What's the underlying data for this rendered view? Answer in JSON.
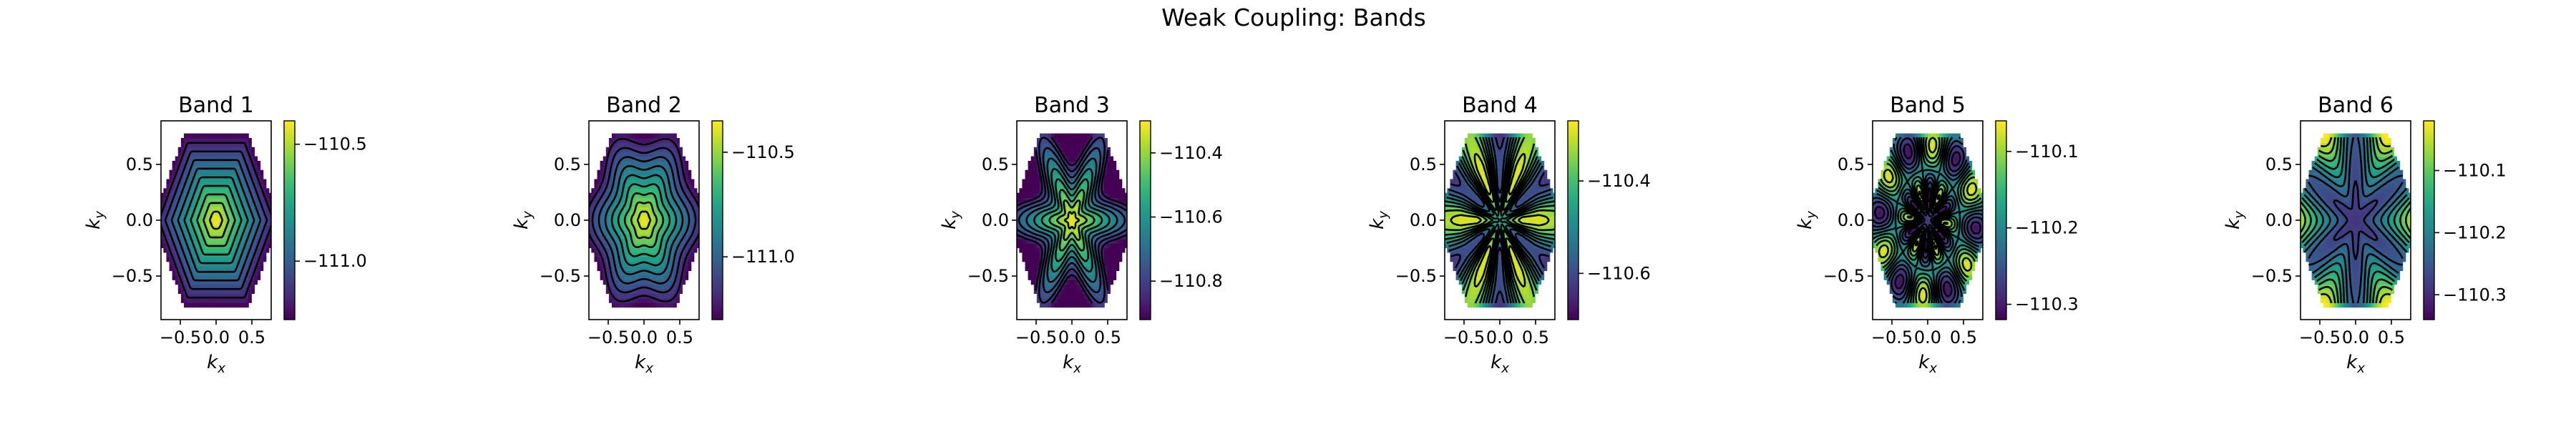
{
  "figure": {
    "title": "Weak Coupling: Bands"
  },
  "chart_data": [
    {
      "type": "heatmap",
      "title": "Band 1",
      "xlabel": "k_x",
      "ylabel": "k_y",
      "xlim": [
        -0.77,
        0.77
      ],
      "ylim": [
        -0.89,
        0.89
      ],
      "xticks": [
        -0.5,
        0.0,
        0.5
      ],
      "yticks": [
        -0.5,
        0.0,
        0.5
      ],
      "xtick_labels": [
        "−0.5",
        "0.0",
        "0.5"
      ],
      "ytick_labels": [
        "−0.5",
        "0.0",
        "0.5"
      ],
      "colorbar": {
        "range": [
          -111.25,
          -110.4
        ],
        "ticks": [
          -110.5,
          -111.0
        ],
        "tick_labels": [
          "−110.5",
          "−111.0"
        ]
      },
      "pattern": "hex-rings",
      "center_high": true
    },
    {
      "type": "heatmap",
      "title": "Band 2",
      "xlabel": "k_x",
      "ylabel": "k_y",
      "xlim": [
        -0.77,
        0.77
      ],
      "ylim": [
        -0.89,
        0.89
      ],
      "xticks": [
        -0.5,
        0.0,
        0.5
      ],
      "yticks": [
        -0.5,
        0.0,
        0.5
      ],
      "xtick_labels": [
        "−0.5",
        "0.0",
        "0.5"
      ],
      "ytick_labels": [
        "−0.5",
        "0.0",
        "0.5"
      ],
      "colorbar": {
        "range": [
          -111.3,
          -110.35
        ],
        "ticks": [
          -110.5,
          -111.0
        ],
        "tick_labels": [
          "−110.5",
          "−111.0"
        ]
      },
      "pattern": "soft-star",
      "center_high": true
    },
    {
      "type": "heatmap",
      "title": "Band 3",
      "xlabel": "k_x",
      "ylabel": "k_y",
      "xlim": [
        -0.77,
        0.77
      ],
      "ylim": [
        -0.89,
        0.89
      ],
      "xticks": [
        -0.5,
        0.0,
        0.5
      ],
      "yticks": [
        -0.5,
        0.0,
        0.5
      ],
      "xtick_labels": [
        "−0.5",
        "0.0",
        "0.5"
      ],
      "ytick_labels": [
        "−0.5",
        "0.0",
        "0.5"
      ],
      "colorbar": {
        "range": [
          -110.92,
          -110.3
        ],
        "ticks": [
          -110.4,
          -110.6,
          -110.8
        ],
        "tick_labels": [
          "−110.4",
          "−110.6",
          "−110.8"
        ]
      },
      "pattern": "six-point-star",
      "center_high": true
    },
    {
      "type": "heatmap",
      "title": "Band 4",
      "xlabel": "k_x",
      "ylabel": "k_y",
      "xlim": [
        -0.77,
        0.77
      ],
      "ylim": [
        -0.89,
        0.89
      ],
      "xticks": [
        -0.5,
        0.0,
        0.5
      ],
      "yticks": [
        -0.5,
        0.0,
        0.5
      ],
      "xtick_labels": [
        "−0.5",
        "0.0",
        "0.5"
      ],
      "ytick_labels": [
        "−0.5",
        "0.0",
        "0.5"
      ],
      "colorbar": {
        "range": [
          -110.7,
          -110.27
        ],
        "ticks": [
          -110.4,
          -110.6
        ],
        "tick_labels": [
          "−110.4",
          "−110.6"
        ]
      },
      "pattern": "six-petal-flower",
      "center_high": true
    },
    {
      "type": "heatmap",
      "title": "Band 5",
      "xlabel": "k_x",
      "ylabel": "k_y",
      "xlim": [
        -0.77,
        0.77
      ],
      "ylim": [
        -0.89,
        0.89
      ],
      "xticks": [
        -0.5,
        0.0,
        0.5
      ],
      "yticks": [
        -0.5,
        0.0,
        0.5
      ],
      "xtick_labels": [
        "−0.5",
        "0.0",
        "0.5"
      ],
      "ytick_labels": [
        "−0.5",
        "0.0",
        "0.5"
      ],
      "colorbar": {
        "range": [
          -110.32,
          -110.06
        ],
        "ticks": [
          -110.1,
          -110.2,
          -110.3
        ],
        "tick_labels": [
          "−110.1",
          "−110.2",
          "−110.3"
        ]
      },
      "pattern": "twelve-pockets",
      "center_high": false
    },
    {
      "type": "heatmap",
      "title": "Band 6",
      "xlabel": "k_x",
      "ylabel": "k_y",
      "xlim": [
        -0.77,
        0.77
      ],
      "ylim": [
        -0.89,
        0.89
      ],
      "xticks": [
        -0.5,
        0.0,
        0.5
      ],
      "yticks": [
        -0.5,
        0.0,
        0.5
      ],
      "xtick_labels": [
        "−0.5",
        "0.0",
        "0.5"
      ],
      "ytick_labels": [
        "−0.5",
        "0.0",
        "0.5"
      ],
      "colorbar": {
        "range": [
          -110.34,
          -110.02
        ],
        "ticks": [
          -110.1,
          -110.2,
          -110.3
        ],
        "tick_labels": [
          "−110.1",
          "−110.2",
          "−110.3"
        ]
      },
      "pattern": "corner-lobes",
      "center_high": false
    }
  ]
}
